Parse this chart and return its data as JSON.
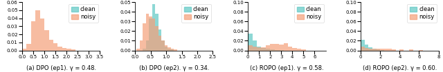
{
  "subplots": [
    {
      "title": "(a) DPO (ep1). γ = 0.48.",
      "xlim": [
        0,
        3.5
      ],
      "ylim": [
        0,
        0.06
      ],
      "yticks": [
        0.0,
        0.01,
        0.02,
        0.03,
        0.04,
        0.05,
        0.06
      ],
      "xticks": [
        0.0,
        0.5,
        1.0,
        1.5,
        2.0,
        2.5,
        3.0,
        3.5
      ],
      "has_clean": false,
      "noisy_edges": [
        0.0,
        0.2,
        0.4,
        0.6,
        0.8,
        1.0,
        1.2,
        1.4,
        1.6,
        1.8,
        2.0,
        2.2,
        2.4
      ],
      "noisy_heights": [
        0.002,
        0.008,
        0.036,
        0.05,
        0.04,
        0.025,
        0.013,
        0.009,
        0.005,
        0.003,
        0.002,
        0.001,
        0.0
      ]
    },
    {
      "title": "(b) DPO (ep2). γ = 0.34.",
      "xlim": [
        0,
        2.5
      ],
      "ylim": [
        0,
        0.05
      ],
      "yticks": [
        0.0,
        0.01,
        0.02,
        0.03,
        0.04,
        0.05
      ],
      "xticks": [
        0.0,
        0.5,
        1.0,
        1.5,
        2.0,
        2.5
      ],
      "has_clean": true,
      "clean_edges": [
        0.25,
        0.35,
        0.45,
        0.55,
        0.65,
        0.75,
        0.85,
        0.95,
        1.05,
        1.15,
        1.25
      ],
      "clean_heights": [
        0.002,
        0.01,
        0.033,
        0.048,
        0.038,
        0.022,
        0.01,
        0.004,
        0.002,
        0.001,
        0.0
      ],
      "noisy_edges": [
        0.05,
        0.15,
        0.25,
        0.35,
        0.45,
        0.55,
        0.65,
        0.75,
        0.85,
        0.95,
        1.05,
        1.15,
        1.25,
        1.35
      ],
      "noisy_heights": [
        0.002,
        0.01,
        0.028,
        0.038,
        0.035,
        0.033,
        0.025,
        0.015,
        0.01,
        0.005,
        0.003,
        0.002,
        0.001,
        0.0
      ]
    },
    {
      "title": "(c) ROPO (ep1). γ = 0.58.",
      "xlim": [
        0,
        7
      ],
      "ylim": [
        0,
        0.1
      ],
      "yticks": [
        0.0,
        0.02,
        0.04,
        0.06,
        0.08,
        0.1
      ],
      "xticks": [
        0,
        1,
        2,
        3,
        4,
        5,
        6
      ],
      "has_clean": true,
      "clean_edges": [
        0.0,
        0.4,
        0.8,
        1.2,
        1.6,
        2.0,
        2.4,
        2.8,
        3.2,
        3.6
      ],
      "clean_heights": [
        0.035,
        0.02,
        0.008,
        0.005,
        0.003,
        0.002,
        0.001,
        0.001,
        0.0,
        0.0
      ],
      "noisy_edges": [
        0.0,
        0.4,
        0.8,
        1.2,
        1.6,
        2.0,
        2.4,
        2.8,
        3.2,
        3.6,
        4.0,
        4.4,
        4.8,
        5.2
      ],
      "noisy_heights": [
        0.01,
        0.008,
        0.007,
        0.007,
        0.01,
        0.013,
        0.013,
        0.012,
        0.015,
        0.008,
        0.005,
        0.003,
        0.002,
        0.0
      ]
    },
    {
      "title": "(d) ROPO (ep2). γ = 0.60.",
      "xlim": [
        0,
        8
      ],
      "ylim": [
        0,
        0.1
      ],
      "yticks": [
        0.0,
        0.02,
        0.04,
        0.06,
        0.08,
        0.1
      ],
      "xticks": [
        0,
        2,
        4,
        6,
        8
      ],
      "has_clean": true,
      "clean_edges": [
        0.0,
        0.4,
        0.8,
        1.2,
        1.6,
        2.0,
        2.4
      ],
      "clean_heights": [
        0.022,
        0.012,
        0.007,
        0.004,
        0.002,
        0.001,
        0.0
      ],
      "noisy_edges": [
        0.0,
        0.4,
        0.8,
        1.2,
        1.6,
        2.0,
        2.4,
        2.8,
        3.2,
        4.0,
        5.0,
        6.0,
        7.0
      ],
      "noisy_heights": [
        0.008,
        0.005,
        0.004,
        0.004,
        0.003,
        0.003,
        0.003,
        0.003,
        0.002,
        0.002,
        0.002,
        0.001,
        0.0
      ]
    }
  ],
  "clean_color": "#5ec8c4",
  "noisy_color": "#f4a07a",
  "clean_alpha": 0.7,
  "noisy_alpha": 0.7,
  "background": "#ffffff",
  "legend_fontsize": 6,
  "tick_fontsize": 5,
  "caption_fontsize": 6
}
